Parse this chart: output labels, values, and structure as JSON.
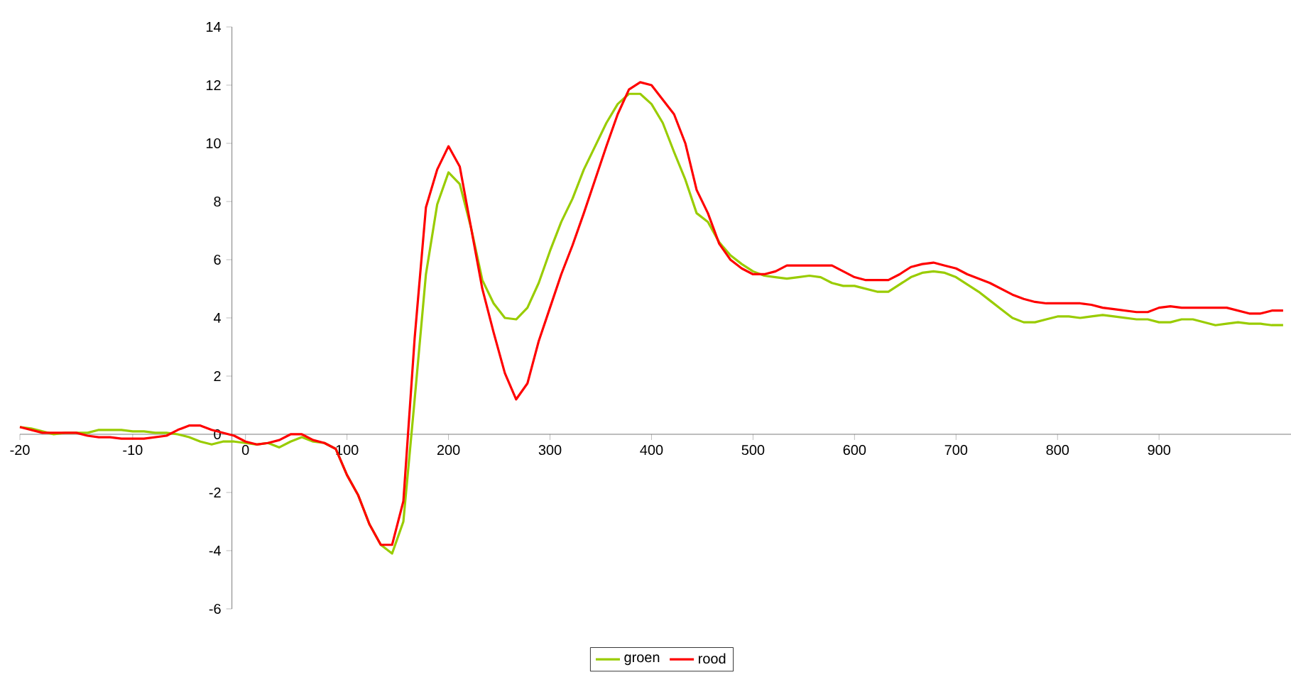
{
  "chart_data": {
    "type": "line",
    "categories": [
      "-20",
      null,
      null,
      null,
      null,
      null,
      null,
      null,
      null,
      null,
      "-10",
      null,
      null,
      null,
      null,
      null,
      null,
      null,
      null,
      null,
      "0",
      null,
      null,
      null,
      null,
      null,
      null,
      null,
      null,
      "100",
      null,
      null,
      null,
      null,
      null,
      null,
      null,
      null,
      "200",
      null,
      null,
      null,
      null,
      null,
      null,
      null,
      null,
      "300",
      null,
      null,
      null,
      null,
      null,
      null,
      null,
      null,
      "400",
      null,
      null,
      null,
      null,
      null,
      null,
      null,
      null,
      "500",
      null,
      null,
      null,
      null,
      null,
      null,
      null,
      null,
      "600",
      null,
      null,
      null,
      null,
      null,
      null,
      null,
      null,
      "700",
      null,
      null,
      null,
      null,
      null,
      null,
      null,
      null,
      "800",
      null,
      null,
      null,
      null,
      null,
      null,
      null,
      null,
      "900",
      null,
      null,
      null,
      null,
      null,
      null,
      null,
      null,
      null,
      null,
      null
    ],
    "series": [
      {
        "name": "groen",
        "color": "#99cc00",
        "values": [
          0.25,
          0.2,
          0.1,
          0.0,
          0.05,
          0.05,
          0.05,
          0.15,
          0.15,
          0.15,
          0.1,
          0.1,
          0.05,
          0.05,
          0.0,
          -0.1,
          -0.25,
          -0.35,
          -0.25,
          -0.25,
          -0.3,
          -0.35,
          -0.3,
          -0.45,
          -0.25,
          -0.1,
          -0.25,
          -0.3,
          -0.5,
          -1.4,
          -2.1,
          -3.1,
          -3.8,
          -4.1,
          -3.0,
          1.2,
          5.5,
          7.9,
          9.0,
          8.6,
          7.1,
          5.3,
          4.5,
          4.0,
          3.95,
          4.35,
          5.2,
          6.3,
          7.3,
          8.1,
          9.1,
          9.9,
          10.7,
          11.35,
          11.7,
          11.7,
          11.35,
          10.7,
          9.7,
          8.75,
          7.6,
          7.3,
          6.6,
          6.15,
          5.85,
          5.6,
          5.45,
          5.4,
          5.35,
          5.4,
          5.45,
          5.4,
          5.2,
          5.1,
          5.1,
          5.0,
          4.9,
          4.9,
          5.15,
          5.4,
          5.55,
          5.6,
          5.55,
          5.4,
          5.15,
          4.9,
          4.6,
          4.3,
          4.0,
          3.85,
          3.85,
          3.95,
          4.05,
          4.05,
          4.0,
          4.05,
          4.1,
          4.05,
          4.0,
          3.95,
          3.95,
          3.85,
          3.85,
          3.95,
          3.95,
          3.85,
          3.75,
          3.8,
          3.85,
          3.8,
          3.8,
          3.75,
          3.75
        ]
      },
      {
        "name": "rood",
        "color": "#ff0000",
        "values": [
          0.25,
          0.15,
          0.05,
          0.05,
          0.05,
          0.05,
          -0.05,
          -0.1,
          -0.1,
          -0.15,
          -0.15,
          -0.15,
          -0.1,
          -0.05,
          0.15,
          0.3,
          0.3,
          0.15,
          0.05,
          -0.05,
          -0.25,
          -0.35,
          -0.3,
          -0.2,
          0.0,
          0.0,
          -0.2,
          -0.3,
          -0.5,
          -1.4,
          -2.1,
          -3.1,
          -3.8,
          -3.8,
          -2.3,
          3.3,
          7.8,
          9.1,
          9.9,
          9.2,
          7.1,
          5.0,
          3.5,
          2.1,
          1.2,
          1.75,
          3.2,
          4.35,
          5.5,
          6.5,
          7.6,
          8.75,
          9.9,
          11.0,
          11.85,
          12.1,
          12.0,
          11.5,
          11.0,
          10.0,
          8.4,
          7.6,
          6.55,
          6.0,
          5.7,
          5.5,
          5.5,
          5.6,
          5.8,
          5.8,
          5.8,
          5.8,
          5.8,
          5.6,
          5.4,
          5.3,
          5.3,
          5.3,
          5.5,
          5.75,
          5.85,
          5.9,
          5.8,
          5.7,
          5.5,
          5.35,
          5.2,
          5.0,
          4.8,
          4.65,
          4.55,
          4.5,
          4.5,
          4.5,
          4.5,
          4.45,
          4.35,
          4.3,
          4.25,
          4.2,
          4.2,
          4.35,
          4.4,
          4.35,
          4.35,
          4.35,
          4.35,
          4.35,
          4.25,
          4.15,
          4.15,
          4.25,
          4.25
        ]
      }
    ],
    "ylim": [
      -6,
      14
    ],
    "yticks": [
      -6,
      -4,
      -2,
      0,
      2,
      4,
      6,
      8,
      10,
      12,
      14
    ],
    "grid": false,
    "legend": "bottom",
    "marker": "none",
    "line_style": "solid"
  }
}
